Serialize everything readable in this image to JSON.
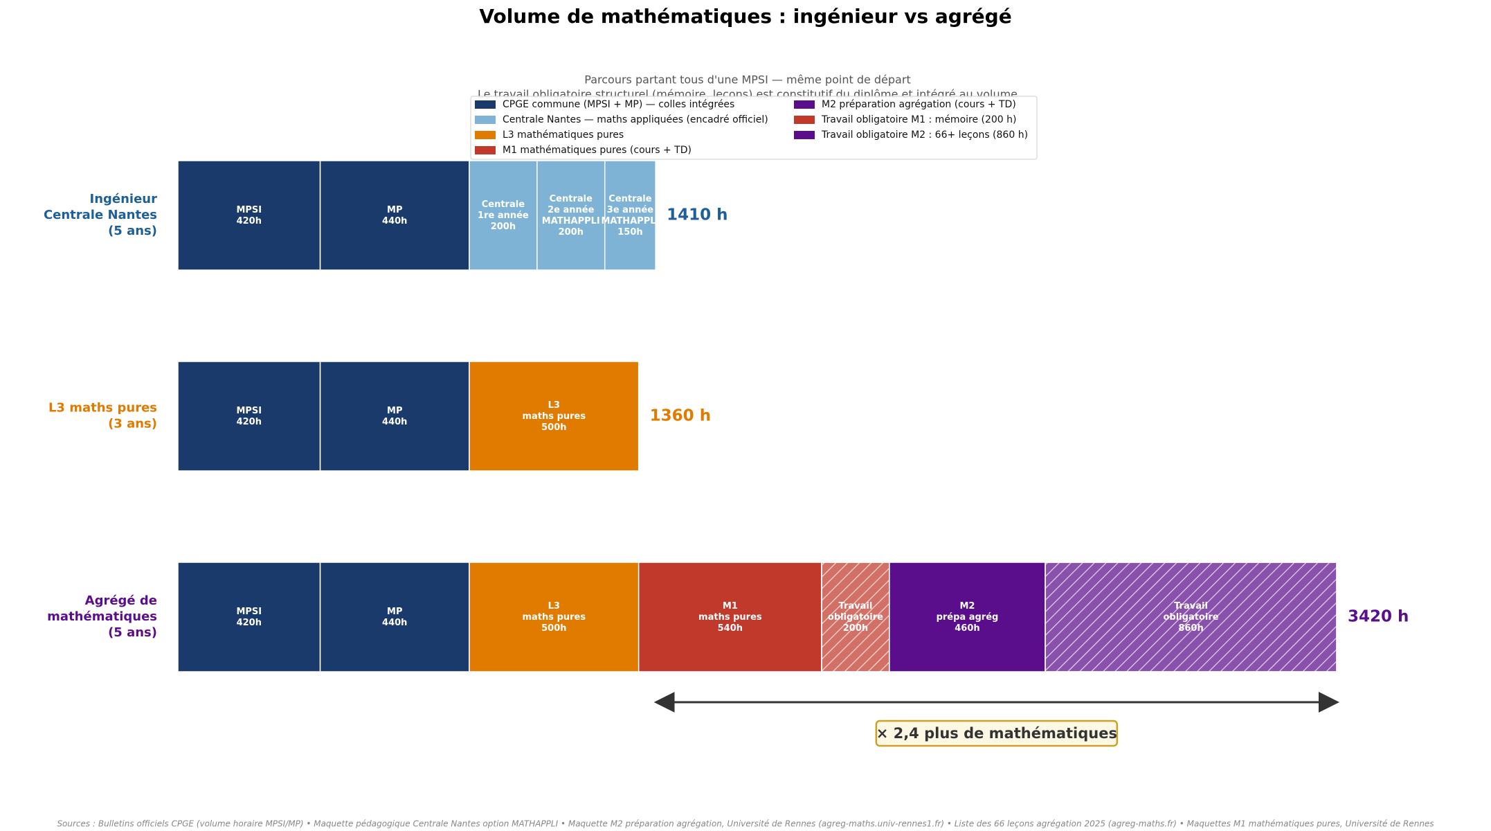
{
  "chart_data": {
    "type": "stacked_barh",
    "title": "Volume de mathématiques : ingénieur vs agrégé",
    "subtitle": [
      "Parcours partant tous d'une MPSI — même point de départ",
      "Le travail obligatoire structurel (mémoire, leçons) est constitutif du diplôme et intégré au volume"
    ],
    "xlim": [
      0,
      3420
    ],
    "legend": [
      {
        "name": "CPGE commune (MPSI + MP) — colles intégrées",
        "color": "#1a3a6b"
      },
      {
        "name": "Centrale Nantes — maths appliquées (encadré officiel)",
        "color": "#7fb3d5"
      },
      {
        "name": "L3 mathématiques pures",
        "color": "#e07b00"
      },
      {
        "name": "M1 mathématiques pures (cours + TD)",
        "color": "#c0392b"
      },
      {
        "name": "M2 préparation agrégation (cours + TD)",
        "color": "#5b0e8b"
      },
      {
        "name": "Travail obligatoire M1 : mémoire (200 h)",
        "color": "#c0392b"
      },
      {
        "name": "Travail obligatoire M2 : 66+ leçons (860 h)",
        "color": "#5b0e8b"
      }
    ],
    "rows": [
      {
        "label": [
          "Ingénieur",
          "Centrale Nantes",
          "(5 ans)"
        ],
        "color": "#1f5f99",
        "total": 1410,
        "total_label": "1410 h",
        "segments": [
          {
            "name": [
              "MPSI"
            ],
            "value": 420,
            "value_label": "420h",
            "color": "#1a3a6b"
          },
          {
            "name": [
              "MP"
            ],
            "value": 440,
            "value_label": "440h",
            "color": "#1a3a6b"
          },
          {
            "name": [
              "Centrale",
              "1re année"
            ],
            "value": 200,
            "value_label": "200h",
            "color": "#7fb3d5"
          },
          {
            "name": [
              "Centrale",
              "2e année",
              "MATHAPPLI"
            ],
            "value": 200,
            "value_label": "200h",
            "color": "#7fb3d5"
          },
          {
            "name": [
              "Centrale",
              "3e année",
              "MATHAPPLI"
            ],
            "value": 150,
            "value_label": "150h",
            "color": "#7fb3d5"
          }
        ]
      },
      {
        "label": [
          "L3 maths pures",
          "(3 ans)"
        ],
        "color": "#e07b00",
        "total": 1360,
        "total_label": "1360 h",
        "segments": [
          {
            "name": [
              "MPSI"
            ],
            "value": 420,
            "value_label": "420h",
            "color": "#1a3a6b"
          },
          {
            "name": [
              "MP"
            ],
            "value": 440,
            "value_label": "440h",
            "color": "#1a3a6b"
          },
          {
            "name": [
              "L3",
              "maths pures"
            ],
            "value": 500,
            "value_label": "500h",
            "color": "#e07b00"
          }
        ]
      },
      {
        "label": [
          "Agrégé de",
          "mathématiques",
          "(5 ans)"
        ],
        "color": "#5b0e8b",
        "total": 3420,
        "total_label": "3420 h",
        "segments": [
          {
            "name": [
              "MPSI"
            ],
            "value": 420,
            "value_label": "420h",
            "color": "#1a3a6b"
          },
          {
            "name": [
              "MP"
            ],
            "value": 440,
            "value_label": "440h",
            "color": "#1a3a6b"
          },
          {
            "name": [
              "L3",
              "maths pures"
            ],
            "value": 500,
            "value_label": "500h",
            "color": "#e07b00"
          },
          {
            "name": [
              "M1",
              "maths pures"
            ],
            "value": 540,
            "value_label": "540h",
            "color": "#c0392b"
          },
          {
            "name": [
              "Travail",
              "obligatoire"
            ],
            "value": 200,
            "value_label": "200h",
            "color": "#c0392b",
            "hatch": true
          },
          {
            "name": [
              "M2",
              "prépa agrég"
            ],
            "value": 460,
            "value_label": "460h",
            "color": "#5b0e8b"
          },
          {
            "name": [
              "Travail",
              "obligatoire"
            ],
            "value": 860,
            "value_label": "860h",
            "color": "#5b0e8b",
            "hatch": true
          }
        ]
      }
    ],
    "annotation": "× 2,4 plus de mathématiques",
    "source": "Sources : Bulletins officiels CPGE (volume horaire MPSI/MP)  •  Maquette pédagogique Centrale Nantes option MATHAPPLI  •  Maquette M2 préparation agrégation, Université de Rennes (agreg-maths.univ-rennes1.fr)  •  Liste des 66 leçons agrégation 2025 (agreg-maths.fr)  •  Maquettes M1 mathématiques pures, Université de Rennes"
  }
}
